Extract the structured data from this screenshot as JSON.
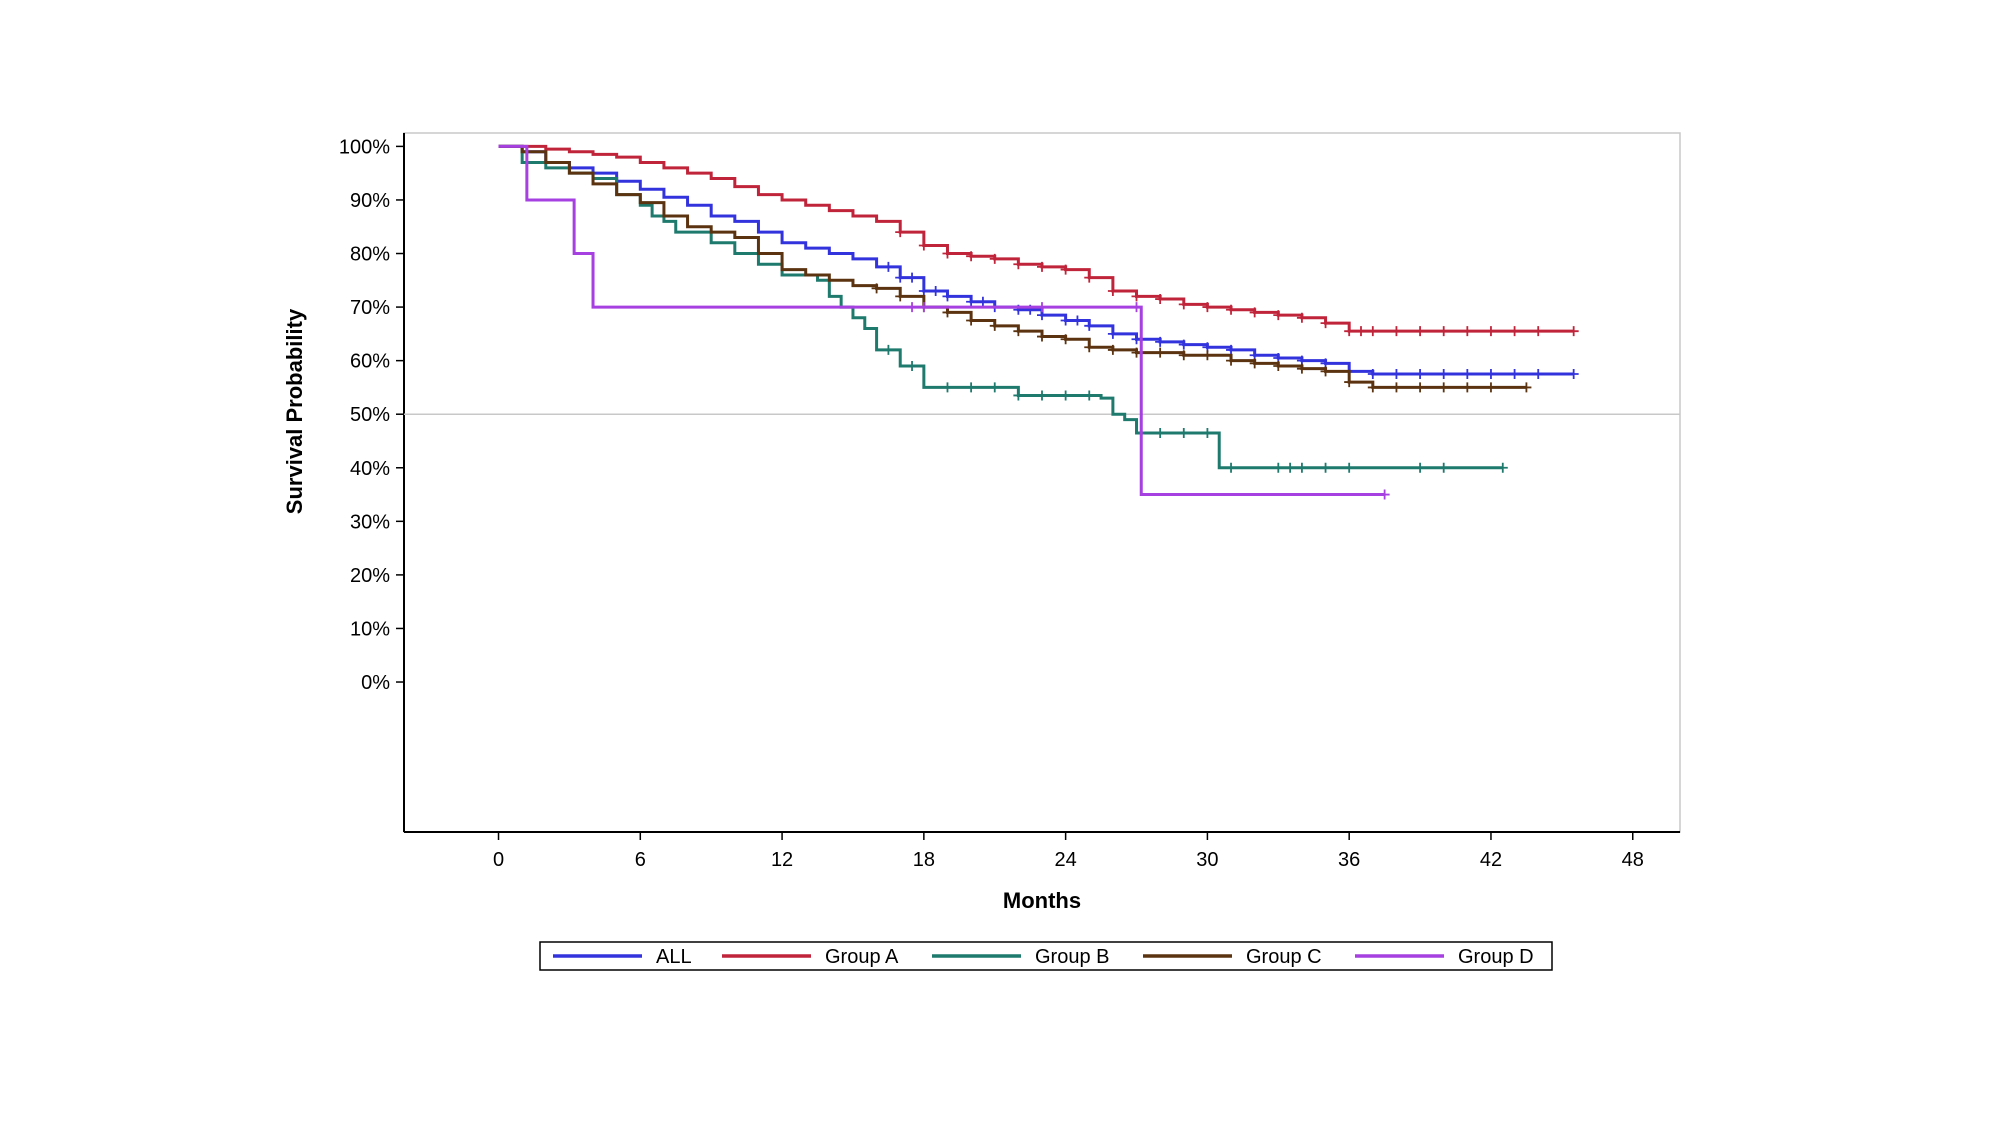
{
  "chart_data": {
    "type": "line",
    "title": "",
    "xlabel": "Months",
    "ylabel": "Survival Probability",
    "xlim": [
      -4,
      50
    ],
    "ylim": [
      -28,
      102.5
    ],
    "x_ticks": [
      0,
      6,
      12,
      18,
      24,
      30,
      36,
      42,
      48
    ],
    "y_ticks": [
      0,
      10,
      20,
      30,
      40,
      50,
      60,
      70,
      80,
      90,
      100
    ],
    "y_tick_labels": [
      "0%",
      "10%",
      "20%",
      "30%",
      "40%",
      "50%",
      "60%",
      "70%",
      "80%",
      "90%",
      "100%"
    ],
    "reference_line_y": 50,
    "grid": false,
    "legend_position": "bottom",
    "series": [
      {
        "name": "ALL",
        "color": "#3333dd",
        "points": [
          [
            0,
            100
          ],
          [
            1,
            99
          ],
          [
            2,
            97
          ],
          [
            3,
            96
          ],
          [
            4,
            95
          ],
          [
            5,
            93.5
          ],
          [
            6,
            92
          ],
          [
            7,
            90.5
          ],
          [
            8,
            89
          ],
          [
            9,
            87
          ],
          [
            10,
            86
          ],
          [
            11,
            84
          ],
          [
            12,
            82
          ],
          [
            13,
            81
          ],
          [
            14,
            80
          ],
          [
            15,
            79
          ],
          [
            16,
            77.5
          ],
          [
            17,
            75.5
          ],
          [
            18,
            73
          ],
          [
            19,
            72
          ],
          [
            20,
            71
          ],
          [
            21,
            70
          ],
          [
            22,
            69.5
          ],
          [
            23,
            68.5
          ],
          [
            24,
            67.5
          ],
          [
            25,
            66.5
          ],
          [
            26,
            65
          ],
          [
            27,
            64
          ],
          [
            28,
            63.5
          ],
          [
            29,
            63
          ],
          [
            30,
            62.5
          ],
          [
            31,
            62
          ],
          [
            32,
            61
          ],
          [
            33,
            60.5
          ],
          [
            34,
            60
          ],
          [
            35,
            59.5
          ],
          [
            36,
            58
          ],
          [
            37,
            57.5
          ],
          [
            40,
            57.5
          ],
          [
            45.5,
            57.5
          ]
        ],
        "censor_x": [
          16.5,
          17,
          17.5,
          18,
          18.5,
          19,
          20,
          20.5,
          21,
          22,
          22.5,
          23,
          24,
          24.5,
          25,
          26,
          27,
          28,
          29,
          30,
          31,
          32,
          33,
          34,
          35,
          36,
          37,
          38,
          39,
          40,
          41,
          42,
          43,
          44,
          45.5
        ]
      },
      {
        "name": "Group A",
        "color": "#c0243a",
        "points": [
          [
            0,
            100
          ],
          [
            2,
            99.5
          ],
          [
            3,
            99
          ],
          [
            4,
            98.5
          ],
          [
            5,
            98
          ],
          [
            6,
            97
          ],
          [
            7,
            96
          ],
          [
            8,
            95
          ],
          [
            9,
            94
          ],
          [
            10,
            92.5
          ],
          [
            11,
            91
          ],
          [
            12,
            90
          ],
          [
            13,
            89
          ],
          [
            14,
            88
          ],
          [
            15,
            87
          ],
          [
            16,
            86
          ],
          [
            17,
            84
          ],
          [
            18,
            81.5
          ],
          [
            19,
            80
          ],
          [
            20,
            79.5
          ],
          [
            21,
            79
          ],
          [
            22,
            78
          ],
          [
            23,
            77.5
          ],
          [
            24,
            77
          ],
          [
            25,
            75.5
          ],
          [
            26,
            73
          ],
          [
            27,
            72
          ],
          [
            28,
            71.5
          ],
          [
            29,
            70.5
          ],
          [
            30,
            70
          ],
          [
            31,
            69.5
          ],
          [
            32,
            69
          ],
          [
            33,
            68.5
          ],
          [
            34,
            68
          ],
          [
            35,
            67
          ],
          [
            36,
            65.5
          ],
          [
            37,
            65.5
          ],
          [
            45.5,
            65.5
          ]
        ],
        "censor_x": [
          17,
          18,
          19,
          20,
          21,
          22,
          23,
          24,
          25,
          26,
          27,
          28,
          29,
          30,
          31,
          32,
          33,
          34,
          35,
          36,
          36.5,
          37,
          38,
          39,
          40,
          41,
          42,
          43,
          44,
          45.5
        ]
      },
      {
        "name": "Group B",
        "color": "#1f7a6e",
        "points": [
          [
            0,
            100
          ],
          [
            1,
            97
          ],
          [
            2,
            96
          ],
          [
            3,
            95
          ],
          [
            4,
            94
          ],
          [
            5,
            91
          ],
          [
            6,
            89
          ],
          [
            6.5,
            87
          ],
          [
            7,
            86
          ],
          [
            7.5,
            84
          ],
          [
            9,
            82
          ],
          [
            10,
            80
          ],
          [
            11,
            78
          ],
          [
            12,
            76
          ],
          [
            13.5,
            75
          ],
          [
            14,
            72
          ],
          [
            14.5,
            70
          ],
          [
            15,
            68
          ],
          [
            15.5,
            66
          ],
          [
            16,
            62
          ],
          [
            17,
            59
          ],
          [
            18,
            55
          ],
          [
            22,
            53.5
          ],
          [
            24,
            53.5
          ],
          [
            25.5,
            53
          ],
          [
            26,
            50
          ],
          [
            26.5,
            49
          ],
          [
            27,
            46.5
          ],
          [
            30,
            46.5
          ],
          [
            30.5,
            40
          ],
          [
            42.5,
            40
          ]
        ],
        "censor_x": [
          16.5,
          17.5,
          19,
          20,
          21,
          22,
          23,
          24,
          25,
          28,
          29,
          30,
          31,
          33,
          33.5,
          34,
          35,
          36,
          39,
          40,
          42.5
        ]
      },
      {
        "name": "Group C",
        "color": "#5c3310",
        "points": [
          [
            0,
            100
          ],
          [
            1,
            99
          ],
          [
            2,
            97
          ],
          [
            3,
            95
          ],
          [
            4,
            93
          ],
          [
            5,
            91
          ],
          [
            6,
            89.5
          ],
          [
            7,
            87
          ],
          [
            8,
            85
          ],
          [
            9,
            84
          ],
          [
            10,
            83
          ],
          [
            11,
            80
          ],
          [
            12,
            77
          ],
          [
            13,
            76
          ],
          [
            14,
            75
          ],
          [
            15,
            74
          ],
          [
            16,
            73.5
          ],
          [
            17,
            72
          ],
          [
            18,
            70
          ],
          [
            19,
            69
          ],
          [
            20,
            67.5
          ],
          [
            21,
            66.5
          ],
          [
            22,
            65.5
          ],
          [
            23,
            64.5
          ],
          [
            24,
            64
          ],
          [
            25,
            62.5
          ],
          [
            26,
            62
          ],
          [
            27,
            61.5
          ],
          [
            28,
            61.5
          ],
          [
            29,
            61
          ],
          [
            30,
            61
          ],
          [
            31,
            60
          ],
          [
            32,
            59.5
          ],
          [
            33,
            59
          ],
          [
            34,
            58.5
          ],
          [
            35,
            58
          ],
          [
            36,
            56
          ],
          [
            37,
            55
          ],
          [
            43.5,
            55
          ]
        ],
        "censor_x": [
          16,
          17,
          18,
          19,
          20,
          21,
          22,
          23,
          24,
          25,
          26,
          27,
          28,
          29,
          30,
          31,
          32,
          33,
          34,
          35,
          36,
          37,
          38,
          39,
          40,
          41,
          42,
          43.5
        ]
      },
      {
        "name": "Group D",
        "color": "#a640e0",
        "points": [
          [
            0,
            100
          ],
          [
            1.2,
            100
          ],
          [
            1.2,
            90
          ],
          [
            3.2,
            90
          ],
          [
            3.2,
            80
          ],
          [
            4,
            80
          ],
          [
            4,
            70
          ],
          [
            27.2,
            70
          ],
          [
            27.2,
            35
          ],
          [
            37.5,
            35
          ]
        ],
        "censor_x": [
          17.5,
          18,
          23,
          27,
          37.5
        ]
      }
    ]
  }
}
